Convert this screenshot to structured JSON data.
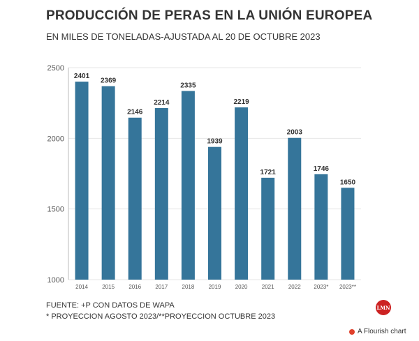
{
  "header": {
    "title": "PRODUCCIÓN DE PERAS EN LA UNIÓN EUROPEA",
    "subtitle": "EN MILES DE TONELADAS-AJUSTADA AL 20 DE OCTUBRE 2023"
  },
  "footer": {
    "source": "FUENTE: +P CON DATOS DE WAPA",
    "note": "* PROYECCION AGOSTO 2023/**PROYECCION OCTUBRE 2023"
  },
  "logo": {
    "text": "LMN"
  },
  "credit": {
    "label": "A Flourish chart"
  },
  "colors": {
    "bar": "#35759a",
    "grid": "#e6e6e6",
    "text": "#333333",
    "brand": "#cc2222"
  },
  "chart_data": {
    "type": "bar",
    "title": "PRODUCCIÓN DE PERAS EN LA UNIÓN EUROPEA",
    "subtitle": "EN MILES DE TONELADAS-AJUSTADA AL 20 DE OCTUBRE 2023",
    "categories": [
      "2014",
      "2015",
      "2016",
      "2017",
      "2018",
      "2019",
      "2020",
      "2021",
      "2022",
      "2023*",
      "2023**"
    ],
    "values": [
      2401,
      2369,
      2146,
      2214,
      2335,
      1939,
      2219,
      1721,
      2003,
      1746,
      1650
    ],
    "ylim": [
      1000,
      2500
    ],
    "yticks": [
      1000,
      1500,
      2000,
      2500
    ],
    "grid": true,
    "data_labels": true
  }
}
